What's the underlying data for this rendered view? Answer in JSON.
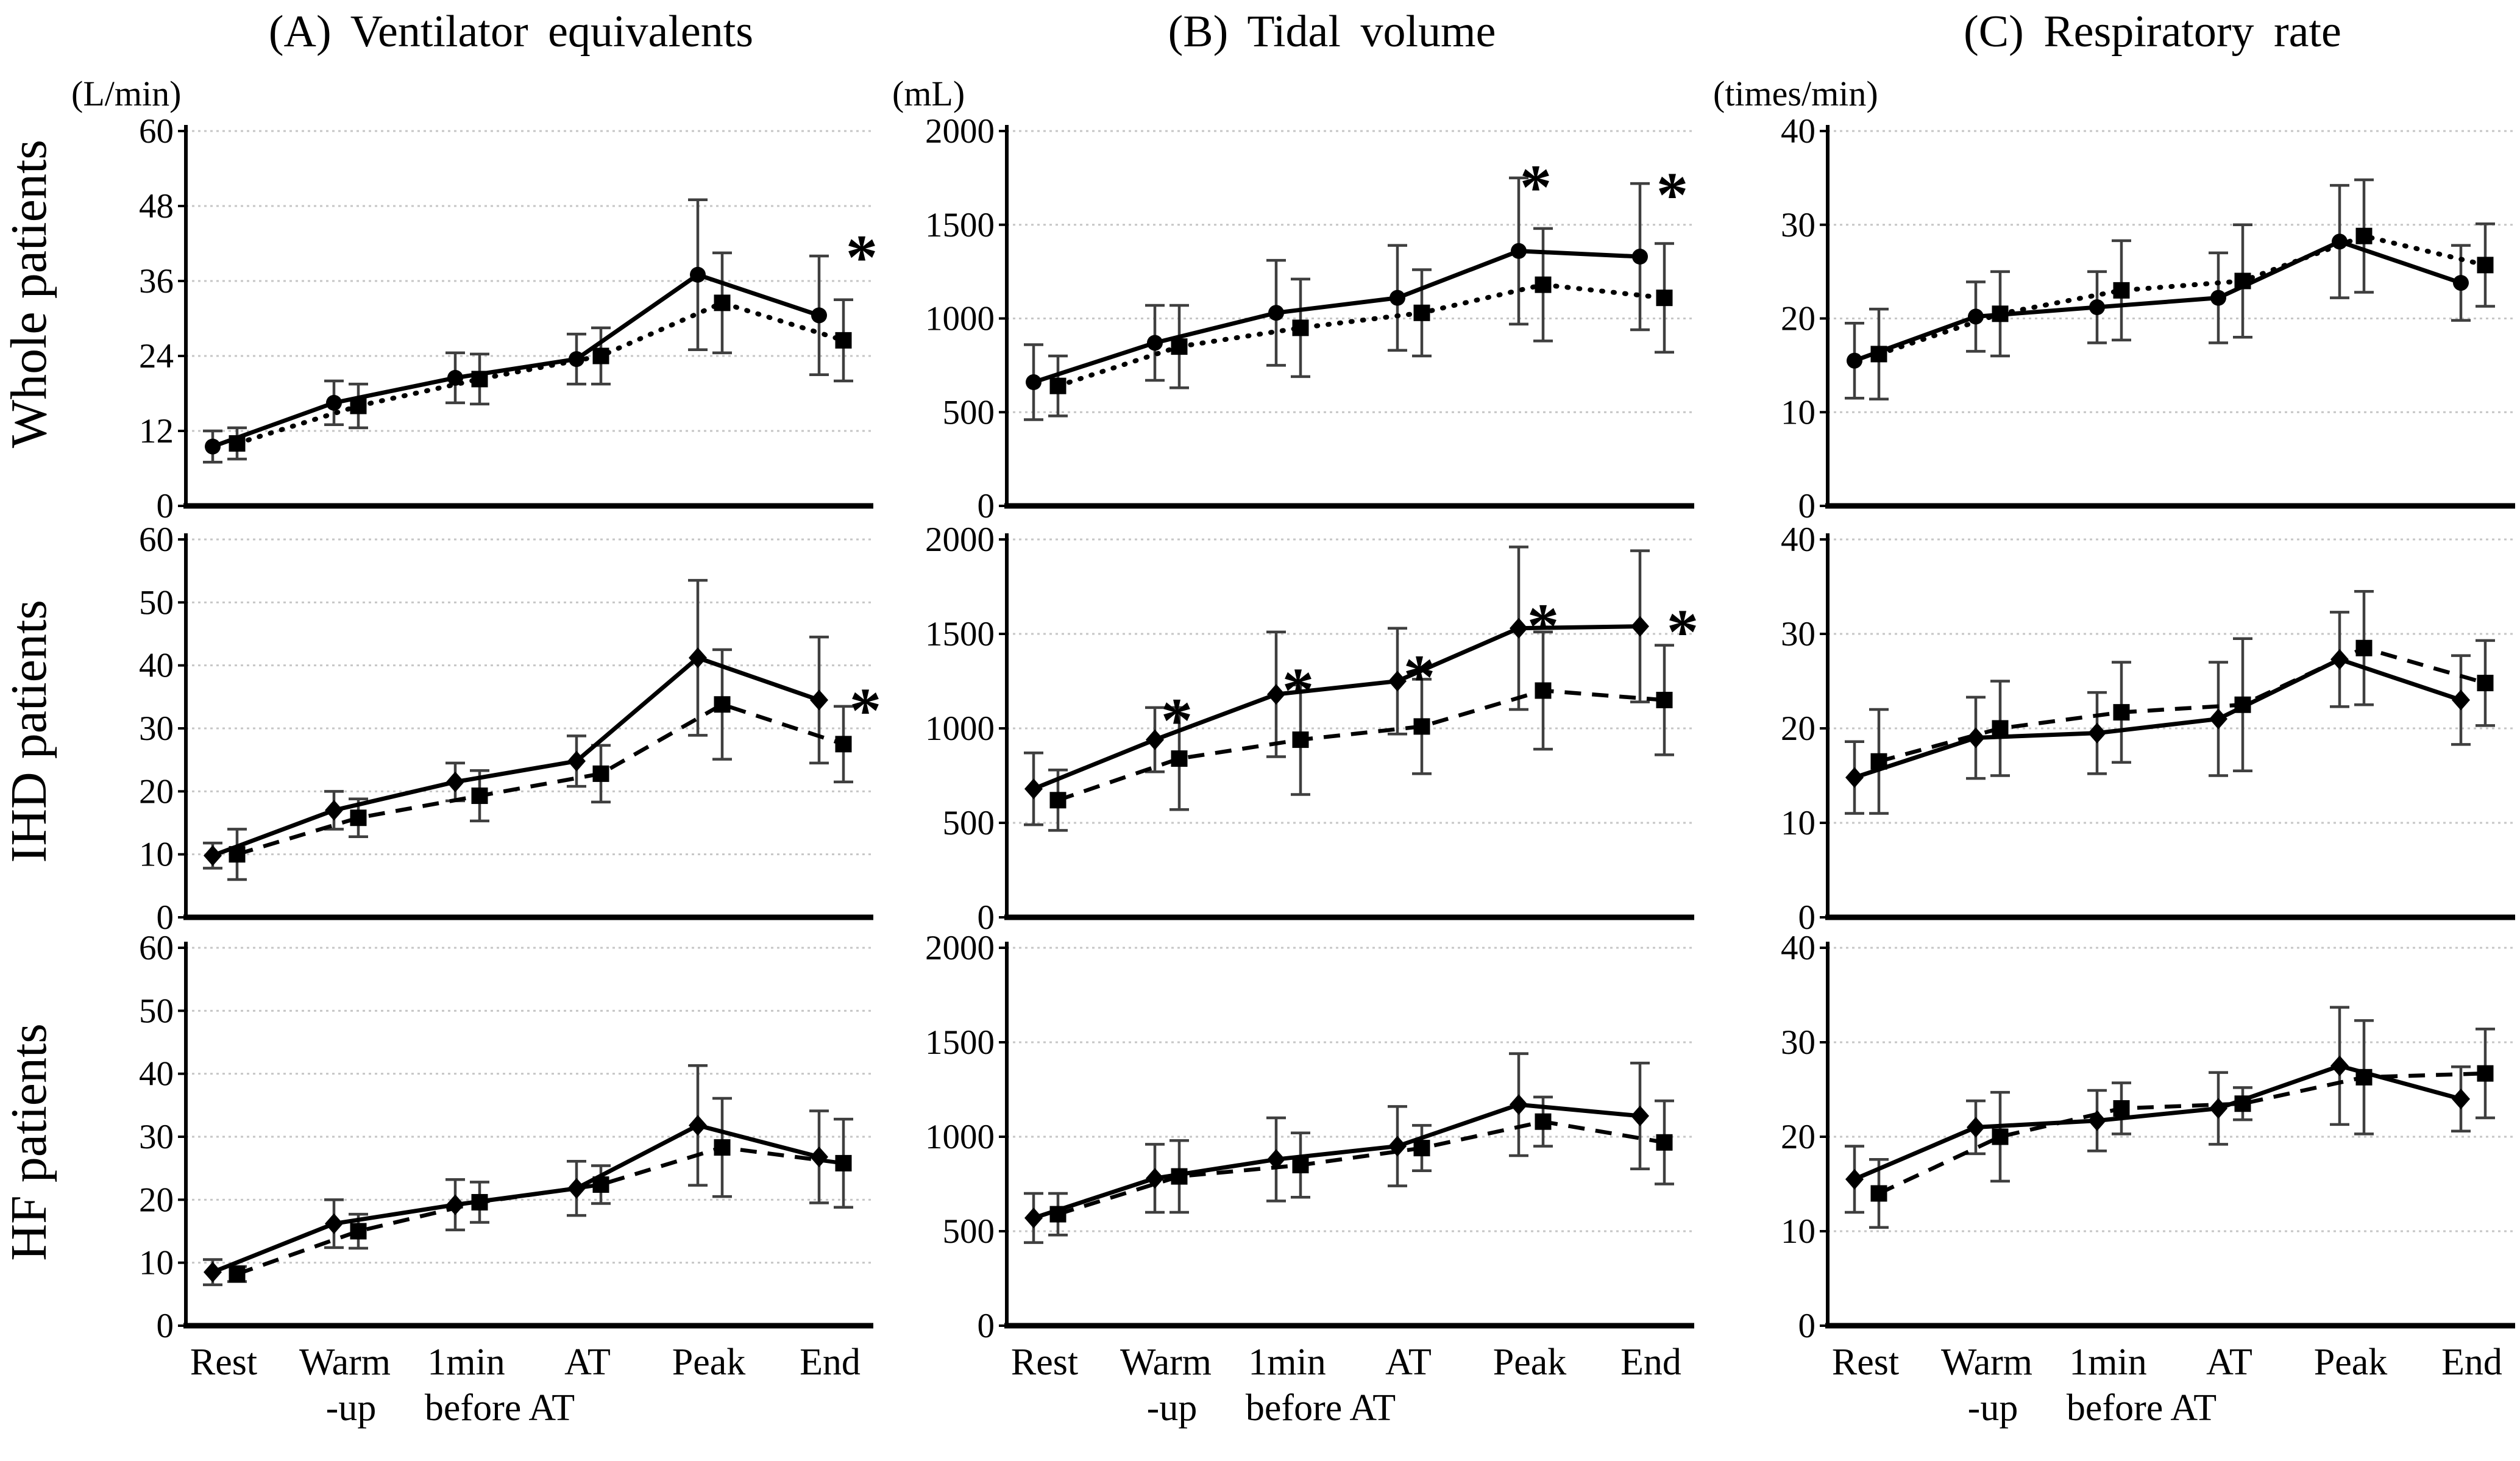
{
  "figure": {
    "columns": [
      {
        "key": "A",
        "title": "(A) Ventilator equivalents",
        "unit": "(L/min)"
      },
      {
        "key": "B",
        "title": "(B) Tidal volume",
        "unit": "(mL)"
      },
      {
        "key": "C",
        "title": "(C) Respiratory rate",
        "unit": "(times/min)"
      }
    ],
    "rows": [
      {
        "key": "whole",
        "label": "Whole patients"
      },
      {
        "key": "ihd",
        "label": "IHD patients"
      },
      {
        "key": "hf",
        "label": "HF patients"
      }
    ],
    "categories": [
      "Rest",
      "Warm-up",
      "1min before AT",
      "AT",
      "Peak",
      "End"
    ],
    "category_display_lines": [
      [
        "Rest"
      ],
      [
        "Warm",
        "-up"
      ],
      [
        "1min",
        "before AT"
      ],
      [
        "AT"
      ],
      [
        "Peak"
      ],
      [
        "End"
      ]
    ],
    "significance_marker": "*",
    "colors": {
      "line": "#000000",
      "error_bar": "#3f3f3f",
      "gridline": "#c6c6c6",
      "text": "#000000",
      "background": "#ffffff"
    }
  },
  "chart_data": [
    {
      "panel": "A-whole",
      "type": "line",
      "row_label": "Whole patients",
      "col_title": "(A) Ventilator equivalents",
      "ylabel_unit": "(L/min)",
      "ylim": [
        0,
        60
      ],
      "yticks": [
        0,
        12,
        24,
        36,
        48,
        60
      ],
      "series": [
        {
          "name": "solid-series",
          "line_style": "solid",
          "marker": "circle",
          "values": [
            9.5,
            16.5,
            20.5,
            23.5,
            37,
            30.5
          ],
          "err": [
            2.5,
            3.5,
            4,
            4,
            12,
            9.5
          ]
        },
        {
          "name": "dotted-series",
          "line_style": "dotted",
          "marker": "square",
          "values": [
            10,
            16,
            20.3,
            24,
            32.5,
            26.5
          ],
          "err": [
            2.5,
            3.5,
            4,
            4.5,
            8,
            6.5
          ]
        }
      ],
      "asterisks": [
        {
          "category": "End",
          "category_index": 5,
          "y": 44,
          "dx": 52
        }
      ]
    },
    {
      "panel": "B-whole",
      "type": "line",
      "row_label": "Whole patients",
      "col_title": "(B) Tidal volume",
      "ylabel_unit": "(mL)",
      "ylim": [
        0,
        2000
      ],
      "yticks": [
        0,
        500,
        1000,
        1500,
        2000
      ],
      "series": [
        {
          "name": "solid-series",
          "line_style": "solid",
          "marker": "circle",
          "values": [
            660,
            870,
            1030,
            1110,
            1360,
            1330
          ],
          "err": [
            200,
            200,
            280,
            280,
            390,
            390
          ]
        },
        {
          "name": "dotted-series",
          "line_style": "dotted",
          "marker": "square",
          "values": [
            640,
            850,
            950,
            1030,
            1180,
            1110
          ],
          "err": [
            160,
            220,
            260,
            230,
            300,
            290
          ]
        }
      ],
      "asterisks": [
        {
          "category": "Peak",
          "category_index": 4,
          "y": 1840,
          "dx": 10
        },
        {
          "category": "End",
          "category_index": 5,
          "y": 1800,
          "dx": 35
        }
      ]
    },
    {
      "panel": "C-whole",
      "type": "line",
      "row_label": "Whole patients",
      "col_title": "(C) Respiratory rate",
      "ylabel_unit": "(times/min)",
      "ylim": [
        0,
        40
      ],
      "yticks": [
        0,
        10,
        20,
        30,
        40
      ],
      "series": [
        {
          "name": "solid-series",
          "line_style": "solid",
          "marker": "circle",
          "values": [
            15.5,
            20.2,
            21.2,
            22.2,
            28.2,
            23.8
          ],
          "err": [
            4,
            3.7,
            3.8,
            4.8,
            6,
            4
          ]
        },
        {
          "name": "dotted-series",
          "line_style": "dotted",
          "marker": "square",
          "values": [
            16.2,
            20.5,
            23,
            24,
            28.8,
            25.7
          ],
          "err": [
            4.8,
            4.5,
            5.3,
            6,
            6,
            4.4
          ]
        }
      ],
      "asterisks": []
    },
    {
      "panel": "A-ihd",
      "type": "line",
      "row_label": "IHD patients",
      "col_title": "(A) Ventilator equivalents",
      "ylabel_unit": "(L/min)",
      "ylim": [
        0,
        60
      ],
      "yticks": [
        0,
        10,
        20,
        30,
        40,
        50,
        60
      ],
      "series": [
        {
          "name": "solid-series",
          "line_style": "solid",
          "marker": "diamond",
          "values": [
            9.8,
            17,
            21.5,
            24.8,
            41.2,
            34.5
          ],
          "err": [
            2,
            3,
            3,
            4,
            12.3,
            10
          ]
        },
        {
          "name": "dashed-series",
          "line_style": "dashed",
          "marker": "square",
          "values": [
            10,
            15.8,
            19.3,
            22.8,
            33.8,
            27.5
          ],
          "err": [
            4,
            3,
            4,
            4.5,
            8.7,
            6
          ]
        }
      ],
      "asterisks": [
        {
          "category": "End",
          "category_index": 5,
          "y": 37,
          "dx": 58
        }
      ]
    },
    {
      "panel": "B-ihd",
      "type": "line",
      "row_label": "IHD patients",
      "col_title": "(B) Tidal volume",
      "ylabel_unit": "(mL)",
      "ylim": [
        0,
        2000
      ],
      "yticks": [
        0,
        500,
        1000,
        1500,
        2000
      ],
      "series": [
        {
          "name": "solid-series",
          "line_style": "solid",
          "marker": "diamond",
          "values": [
            680,
            940,
            1180,
            1250,
            1530,
            1540
          ],
          "err": [
            190,
            170,
            330,
            280,
            430,
            400
          ]
        },
        {
          "name": "dashed-series",
          "line_style": "dashed",
          "marker": "square",
          "values": [
            620,
            840,
            940,
            1010,
            1200,
            1150
          ],
          "err": [
            160,
            270,
            290,
            250,
            310,
            290
          ]
        }
      ],
      "asterisks": [
        {
          "category": "Warm-up",
          "category_index": 1,
          "y": 1180,
          "dx": 18
        },
        {
          "category": "1min before AT",
          "category_index": 2,
          "y": 1340,
          "dx": 18
        },
        {
          "category": "AT",
          "category_index": 3,
          "y": 1410,
          "dx": 18
        },
        {
          "category": "Peak",
          "category_index": 4,
          "y": 1680,
          "dx": 22
        },
        {
          "category": "End",
          "category_index": 5,
          "y": 1650,
          "dx": 52
        }
      ]
    },
    {
      "panel": "C-ihd",
      "type": "line",
      "row_label": "IHD patients",
      "col_title": "(C) Respiratory rate",
      "ylabel_unit": "(times/min)",
      "ylim": [
        0,
        40
      ],
      "yticks": [
        0,
        10,
        20,
        30,
        40
      ],
      "series": [
        {
          "name": "solid-series",
          "line_style": "solid",
          "marker": "diamond",
          "values": [
            14.8,
            19,
            19.5,
            21,
            27.3,
            23
          ],
          "err": [
            3.8,
            4.3,
            4.3,
            6,
            5,
            4.7
          ]
        },
        {
          "name": "dashed-series",
          "line_style": "dashed",
          "marker": "square",
          "values": [
            16.5,
            20,
            21.7,
            22.5,
            28.5,
            24.8
          ],
          "err": [
            5.5,
            5,
            5.3,
            7,
            6,
            4.5
          ]
        }
      ],
      "asterisks": []
    },
    {
      "panel": "A-hf",
      "type": "line",
      "row_label": "HF patients",
      "col_title": "(A) Ventilator equivalents",
      "ylabel_unit": "(L/min)",
      "ylim": [
        0,
        60
      ],
      "yticks": [
        0,
        10,
        20,
        30,
        40,
        50,
        60
      ],
      "series": [
        {
          "name": "solid-series",
          "line_style": "solid",
          "marker": "diamond",
          "values": [
            8.5,
            16.2,
            19.2,
            21.8,
            31.8,
            26.8
          ],
          "err": [
            2,
            3.8,
            4,
            4.3,
            9.5,
            7.3
          ]
        },
        {
          "name": "dashed-series",
          "line_style": "dashed",
          "marker": "square",
          "values": [
            8.2,
            15,
            19.6,
            22.4,
            28.3,
            25.8
          ],
          "err": [
            1.2,
            2.7,
            3.2,
            3,
            7.8,
            7
          ]
        }
      ],
      "asterisks": []
    },
    {
      "panel": "B-hf",
      "type": "line",
      "row_label": "HF patients",
      "col_title": "(B) Tidal volume",
      "ylabel_unit": "(mL)",
      "ylim": [
        0,
        2000
      ],
      "yticks": [
        0,
        500,
        1000,
        1500,
        2000
      ],
      "series": [
        {
          "name": "solid-series",
          "line_style": "solid",
          "marker": "diamond",
          "values": [
            570,
            780,
            880,
            950,
            1170,
            1110
          ],
          "err": [
            130,
            180,
            220,
            210,
            270,
            280
          ]
        },
        {
          "name": "dashed-series",
          "line_style": "dashed",
          "marker": "square",
          "values": [
            590,
            790,
            850,
            940,
            1080,
            970
          ],
          "err": [
            110,
            190,
            170,
            120,
            130,
            220
          ]
        }
      ],
      "asterisks": []
    },
    {
      "panel": "C-hf",
      "type": "line",
      "row_label": "HF patients",
      "col_title": "(C) Respiratory rate",
      "ylabel_unit": "(times/min)",
      "ylim": [
        0,
        40
      ],
      "yticks": [
        0,
        10,
        20,
        30,
        40
      ],
      "series": [
        {
          "name": "solid-series",
          "line_style": "solid",
          "marker": "diamond",
          "values": [
            15.5,
            21,
            21.7,
            23,
            27.5,
            24
          ],
          "err": [
            3.5,
            2.8,
            3.2,
            3.8,
            6.2,
            3.4
          ]
        },
        {
          "name": "dashed-series",
          "line_style": "dashed",
          "marker": "square",
          "values": [
            14,
            20,
            23,
            23.5,
            26.3,
            26.7
          ],
          "err": [
            3.6,
            4.7,
            2.7,
            1.7,
            6,
            4.7
          ]
        }
      ],
      "asterisks": []
    }
  ]
}
